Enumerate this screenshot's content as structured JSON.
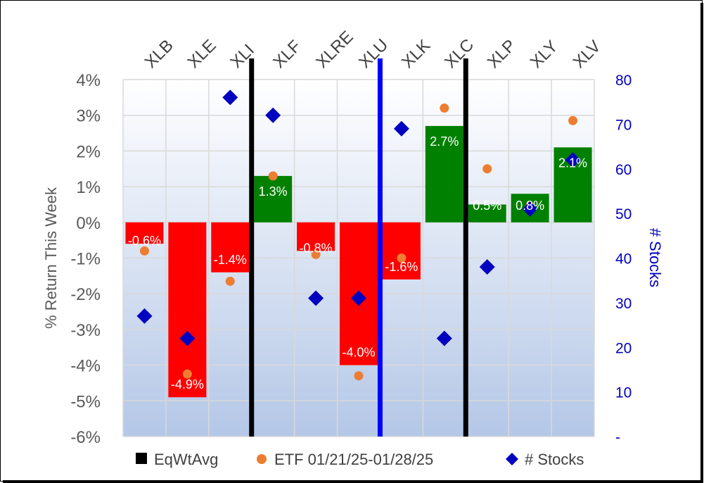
{
  "chart_data": {
    "type": "bar",
    "categories": [
      "XLB",
      "XLE",
      "XLI",
      "XLF",
      "XLRE",
      "XLU",
      "XLK",
      "XLC",
      "XLP",
      "XLY",
      "XLV"
    ],
    "series": [
      {
        "name": "EqWtAvg",
        "type": "bar",
        "axis": "left",
        "values": [
          -0.6,
          -4.9,
          -1.4,
          1.3,
          -0.8,
          -4.0,
          -1.6,
          2.7,
          0.5,
          0.8,
          2.1
        ],
        "labels": [
          "-0.6%",
          "-4.9%",
          "-1.4%",
          "1.3%",
          "-0.8%",
          "-4.0%",
          "-1.6%",
          "2.7%",
          "0.5%",
          "0.8%",
          "2.1%"
        ],
        "colors": {
          "negative": "#ff0000",
          "positive": "#008000"
        }
      },
      {
        "name": "ETF 01/21/25-01/28/25",
        "type": "scatter",
        "axis": "left",
        "marker": "circle",
        "color": "#ed7d31",
        "values": [
          -0.8,
          -4.25,
          -1.65,
          1.3,
          -0.9,
          -4.3,
          -1.0,
          3.2,
          1.5,
          0.45,
          2.85
        ]
      },
      {
        "name": "# Stocks",
        "type": "scatter",
        "axis": "right",
        "marker": "diamond",
        "color": "#0000c0",
        "values": [
          27,
          22,
          76,
          72,
          31,
          31,
          69,
          22,
          38,
          51,
          62
        ]
      }
    ],
    "ylabel": "% Return This Week",
    "y2label": "# Stocks",
    "ylim": [
      -6,
      4
    ],
    "y2lim": [
      0,
      80
    ],
    "yticks": [
      "4%",
      "3%",
      "2%",
      "1%",
      "0%",
      "-1%",
      "-2%",
      "-3%",
      "-4%",
      "-5%",
      "-6%"
    ],
    "y2ticks": [
      "80",
      "70",
      "60",
      "50",
      "40",
      "30",
      "20",
      "10",
      "-"
    ],
    "separators": [
      {
        "after_category": "XLI",
        "color": "#000000"
      },
      {
        "after_category": "XLU",
        "color": "#0000ff"
      },
      {
        "after_category": "XLC",
        "color": "#000000"
      }
    ],
    "legend": {
      "position": "bottom",
      "entries": [
        "EqWtAvg",
        "ETF 01/21/25-01/28/25",
        "# Stocks"
      ]
    },
    "grid": true
  }
}
